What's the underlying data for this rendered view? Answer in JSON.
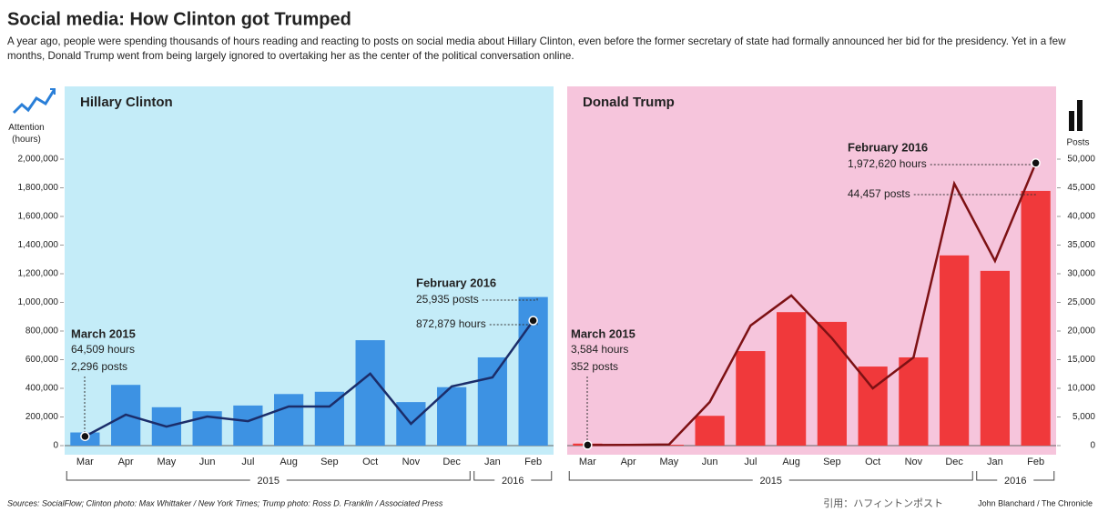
{
  "title": "Social media: How Clinton got Trumped",
  "subtitle": "A year ago, people were spending thousands of hours reading and reacting to posts on social media about Hillary Clinton, even before the former secretary of state had formally announced her bid for the presidency. Yet in a few months, Donald Trump went from being largely ignored to overtaking her as the center of the political conversation online.",
  "sources": "Sources: SocialFlow; Clinton photo: Max Whittaker / New York Times; Trump photo: Ross D. Franklin / Associated Press",
  "quote": "引用：ハフィントンポスト",
  "credit": "John Blanchard / The Chronicle",
  "chart_data": [
    {
      "type": "bar",
      "title": "Hillary Clinton",
      "background": "#c4ecf8",
      "categories": [
        "Mar",
        "Apr",
        "May",
        "Jun",
        "Jul",
        "Aug",
        "Sep",
        "Oct",
        "Nov",
        "Dec",
        "Jan",
        "Feb"
      ],
      "groups": [
        {
          "label": "2015",
          "start": "Mar",
          "end": "Dec"
        },
        {
          "label": "2016",
          "start": "Jan",
          "end": "Feb"
        }
      ],
      "ylabel": "Attention (hours)",
      "ylim": [
        0,
        2000000
      ],
      "yticks": [
        0,
        {
          "value": 200000,
          "label": "200,000"
        },
        {
          "value": 400000,
          "label": "400,000"
        },
        {
          "value": 600000,
          "label": "600,000"
        },
        {
          "value": 800000,
          "label": "800,000"
        },
        {
          "value": 1000000,
          "label": "1,000,000"
        },
        {
          "value": 1200000,
          "label": "1,200,000"
        },
        {
          "value": 1400000,
          "label": "1,400,000"
        },
        {
          "value": 1600000,
          "label": "1,600,000"
        },
        {
          "value": 1800000,
          "label": "1,800,000"
        },
        {
          "value": 2000000,
          "label": "2,000,000"
        }
      ],
      "annotations": [
        "March 2015",
        "February 2016"
      ],
      "series": [
        {
          "name": "Posts",
          "type": "bar",
          "axis": "y2",
          "color": "#3d92e3",
          "values": [
            2296,
            10600,
            6700,
            6000,
            7000,
            9000,
            9400,
            18400,
            7600,
            10200,
            15400,
            25935
          ],
          "value_labels": [
            "2,296 posts",
            null,
            null,
            null,
            null,
            null,
            null,
            null,
            null,
            null,
            null,
            "25,935 posts"
          ]
        },
        {
          "name": "Attention (hours)",
          "type": "line",
          "color": "#1b2d6a",
          "values": [
            64509,
            216000,
            133000,
            203000,
            171000,
            273000,
            273000,
            502000,
            152000,
            413000,
            476000,
            872879
          ],
          "value_labels": [
            "64,509 hours",
            null,
            null,
            null,
            null,
            null,
            null,
            null,
            null,
            null,
            null,
            "872,879 hours"
          ]
        }
      ]
    },
    {
      "type": "bar",
      "title": "Donald Trump",
      "background": "#f6c5dc",
      "categories": [
        "Mar",
        "Apr",
        "May",
        "Jun",
        "Jul",
        "Aug",
        "Sep",
        "Oct",
        "Nov",
        "Dec",
        "Jan",
        "Feb"
      ],
      "groups": [
        {
          "label": "2015",
          "start": "Mar",
          "end": "Dec"
        },
        {
          "label": "2016",
          "start": "Jan",
          "end": "Feb"
        }
      ],
      "y2label": "Posts",
      "y2lim": [
        0,
        50000
      ],
      "y2ticks": [
        0,
        {
          "value": 5000,
          "label": "5,000"
        },
        {
          "value": 10000,
          "label": "10,000"
        },
        {
          "value": 15000,
          "label": "15,000"
        },
        {
          "value": 20000,
          "label": "20,000"
        },
        {
          "value": 25000,
          "label": "25,000"
        },
        {
          "value": 30000,
          "label": "30,000"
        },
        {
          "value": 35000,
          "label": "35,000"
        },
        {
          "value": 40000,
          "label": "40,000"
        },
        {
          "value": 45000,
          "label": "45,000"
        },
        {
          "value": 50000,
          "label": "50,000"
        }
      ],
      "annotations": [
        "March 2015",
        "February 2016"
      ],
      "series": [
        {
          "name": "Posts",
          "type": "bar",
          "axis": "y2",
          "color": "#f0393b",
          "values": [
            352,
            100,
            150,
            5200,
            16500,
            23300,
            21600,
            13800,
            15400,
            33200,
            30500,
            44457
          ],
          "value_labels": [
            "352 posts",
            null,
            null,
            null,
            null,
            null,
            null,
            null,
            null,
            null,
            null,
            "44,457 posts"
          ]
        },
        {
          "name": "Attention (hours)",
          "type": "line",
          "color": "#7d1114",
          "values": [
            3584,
            5000,
            8000,
            305000,
            838000,
            1048000,
            749000,
            400000,
            616000,
            1829000,
            1289000,
            1972620
          ],
          "value_labels": [
            "3,584 hours",
            null,
            null,
            null,
            null,
            null,
            null,
            null,
            null,
            null,
            null,
            "1,972,620 hours"
          ]
        }
      ]
    }
  ]
}
